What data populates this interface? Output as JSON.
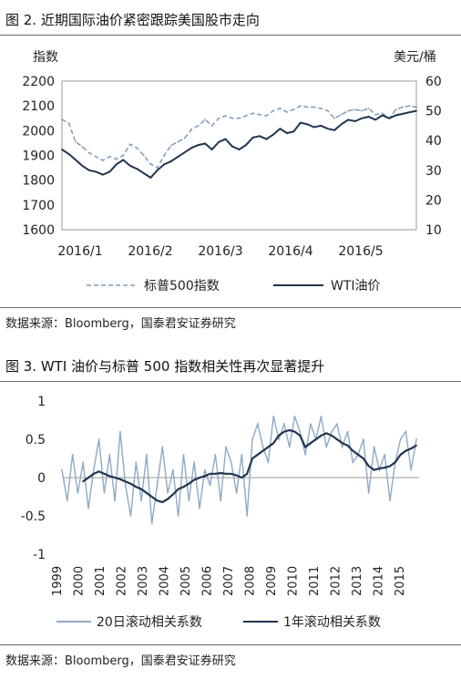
{
  "figure2": {
    "title": "图 2. 近期国际油价紧密跟踪美国股市走向",
    "source": "数据来源：Bloomberg，国泰君安证券研究"
  },
  "figure3": {
    "title": "图 3. WTI 油价与标普 500 指数相关性再次显著提升",
    "source": "数据来源：Bloomberg，国泰君安证券研究"
  },
  "chart_data": [
    {
      "type": "line",
      "title": "图 2. 近期国际油价紧密跟踪美国股市走向",
      "ylabel": "指数",
      "y2label": "美元/桶",
      "ylim": [
        1600,
        2200
      ],
      "y2lim": [
        10,
        60
      ],
      "yticks": [
        "2200",
        "2100",
        "2000",
        "1900",
        "1800",
        "1700",
        "1600"
      ],
      "y2ticks": [
        "60",
        "50",
        "40",
        "30",
        "20",
        "10"
      ],
      "xticks": [
        "2016/1",
        "2016/2",
        "2016/3",
        "2016/4",
        "2016/5"
      ],
      "x": [
        0,
        3,
        6,
        9,
        12,
        15,
        18,
        21,
        24,
        27,
        30,
        33,
        36,
        39,
        42,
        45,
        48,
        51,
        54,
        57,
        60,
        63,
        66,
        69,
        72,
        75,
        78,
        81,
        84,
        87,
        90,
        93,
        96,
        99,
        102,
        105,
        108,
        111,
        114,
        117,
        120,
        123,
        126,
        129,
        132,
        135,
        138,
        141,
        144,
        147,
        150,
        153,
        156
      ],
      "series": [
        {
          "name": "标普500指数",
          "axis": "left",
          "style": "dashed",
          "color": "#7f9ab8",
          "values": [
            2045,
            2030,
            1955,
            1935,
            1910,
            1895,
            1880,
            1895,
            1885,
            1900,
            1945,
            1930,
            1900,
            1865,
            1850,
            1900,
            1940,
            1955,
            1970,
            2005,
            2020,
            2045,
            2020,
            2050,
            2060,
            2050,
            2050,
            2060,
            2070,
            2065,
            2060,
            2080,
            2090,
            2075,
            2085,
            2100,
            2095,
            2095,
            2090,
            2080,
            2050,
            2065,
            2080,
            2085,
            2080,
            2090,
            2065,
            2070,
            2050,
            2085,
            2095,
            2100,
            2095
          ]
        },
        {
          "name": "WTI油价",
          "axis": "right",
          "style": "solid",
          "color": "#1f3550",
          "values": [
            37.0,
            35.5,
            33.5,
            31.5,
            30.0,
            29.5,
            28.5,
            29.5,
            32.0,
            33.5,
            31.5,
            30.5,
            29.0,
            27.5,
            30.0,
            32.0,
            33.0,
            34.5,
            36.0,
            37.5,
            38.5,
            39.0,
            37.0,
            39.5,
            40.5,
            38.0,
            37.0,
            38.5,
            41.0,
            41.5,
            40.5,
            42.0,
            44.0,
            42.5,
            43.0,
            46.0,
            45.5,
            44.5,
            45.0,
            44.0,
            43.5,
            45.5,
            47.0,
            46.5,
            47.5,
            48.0,
            47.0,
            48.5,
            47.5,
            48.5,
            49.0,
            49.5,
            50.0
          ]
        }
      ],
      "legend": [
        "标普500指数",
        "WTI油价"
      ],
      "legend_position": "bottom"
    },
    {
      "type": "line",
      "title": "图 3. WTI 油价与标普 500 指数相关性再次显著提升",
      "ylim": [
        -1,
        1
      ],
      "yticks": [
        "1",
        "0.5",
        "0",
        "-0.5",
        "-1"
      ],
      "xticks": [
        "1999",
        "2000",
        "2001",
        "2002",
        "2003",
        "2004",
        "2005",
        "2006",
        "2007",
        "2008",
        "2009",
        "2010",
        "2011",
        "2012",
        "2013",
        "2014",
        "2015"
      ],
      "x": [
        1999.0,
        1999.25,
        1999.5,
        1999.75,
        2000.0,
        2000.25,
        2000.5,
        2000.75,
        2001.0,
        2001.25,
        2001.5,
        2001.75,
        2002.0,
        2002.25,
        2002.5,
        2002.75,
        2003.0,
        2003.25,
        2003.5,
        2003.75,
        2004.0,
        2004.25,
        2004.5,
        2004.75,
        2005.0,
        2005.25,
        2005.5,
        2005.75,
        2006.0,
        2006.25,
        2006.5,
        2006.75,
        2007.0,
        2007.25,
        2007.5,
        2007.75,
        2008.0,
        2008.25,
        2008.5,
        2008.75,
        2009.0,
        2009.25,
        2009.5,
        2009.75,
        2010.0,
        2010.25,
        2010.5,
        2010.75,
        2011.0,
        2011.25,
        2011.5,
        2011.75,
        2012.0,
        2012.25,
        2012.5,
        2012.75,
        2013.0,
        2013.25,
        2013.5,
        2013.75,
        2014.0,
        2014.25,
        2014.5,
        2014.75,
        2015.0,
        2015.25,
        2015.5,
        2015.75
      ],
      "series": [
        {
          "name": "20日滚动相关系数",
          "style": "solid",
          "color": "#8fa9c4",
          "values": [
            0.1,
            -0.3,
            0.3,
            -0.2,
            0.2,
            -0.4,
            0.1,
            0.5,
            -0.2,
            0.3,
            -0.3,
            0.6,
            -0.1,
            -0.5,
            0.2,
            -0.3,
            0.3,
            -0.6,
            -0.1,
            0.4,
            -0.2,
            0.1,
            -0.5,
            0.3,
            -0.3,
            0.2,
            -0.4,
            0.1,
            -0.1,
            0.3,
            -0.3,
            0.4,
            0.2,
            -0.2,
            0.3,
            -0.5,
            0.5,
            0.7,
            0.4,
            0.2,
            0.8,
            0.5,
            0.7,
            0.4,
            0.8,
            0.6,
            0.3,
            0.7,
            0.5,
            0.8,
            0.4,
            0.6,
            0.7,
            0.4,
            0.6,
            0.2,
            0.3,
            0.5,
            -0.2,
            0.4,
            0.1,
            0.3,
            -0.3,
            0.2,
            0.5,
            0.6,
            0.1,
            0.5
          ]
        },
        {
          "name": "1年滚动相关系数",
          "style": "solid",
          "color": "#1f3550",
          "values": [
            null,
            null,
            null,
            null,
            -0.05,
            0.0,
            0.05,
            0.08,
            0.05,
            0.02,
            0.0,
            -0.02,
            -0.05,
            -0.08,
            -0.12,
            -0.15,
            -0.2,
            -0.25,
            -0.3,
            -0.32,
            -0.28,
            -0.22,
            -0.15,
            -0.12,
            -0.08,
            -0.03,
            0.0,
            0.02,
            0.05,
            0.05,
            0.06,
            0.05,
            0.05,
            0.03,
            0.0,
            0.05,
            0.25,
            0.3,
            0.35,
            0.4,
            0.45,
            0.55,
            0.6,
            0.62,
            0.6,
            0.55,
            0.4,
            0.45,
            0.5,
            0.55,
            0.58,
            0.55,
            0.5,
            0.45,
            0.42,
            0.35,
            0.3,
            0.25,
            0.15,
            0.1,
            0.12,
            0.13,
            0.15,
            0.2,
            0.3,
            0.35,
            0.38,
            0.42
          ]
        }
      ],
      "legend": [
        "20日滚动相关系数",
        "1年滚动相关系数"
      ],
      "legend_position": "bottom"
    }
  ]
}
